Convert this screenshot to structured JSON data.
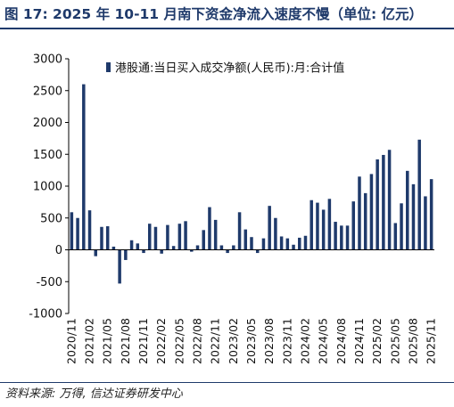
{
  "header": {
    "title": "图 17: 2025 年 10-11 月南下资金净流入速度不慢（单位: 亿元）"
  },
  "footer": {
    "source": "资料来源: 万得, 信达证券研发中心"
  },
  "colors": {
    "bar": "#1f3a6b",
    "title": "#1f3a6b"
  },
  "chart_data": {
    "type": "bar",
    "title": "",
    "xlabel": "",
    "ylabel": "",
    "ylim": [
      -1000,
      3000
    ],
    "yticks": [
      "3000",
      "2500",
      "2000",
      "1500",
      "1000",
      "500",
      "0",
      "-500",
      "-1000"
    ],
    "ytick_values": [
      3000,
      2500,
      2000,
      1500,
      1000,
      500,
      0,
      -500,
      -1000
    ],
    "grid": false,
    "legend": {
      "position": "top-left"
    },
    "categories": [
      "2020/11",
      "2020/12",
      "2021/01",
      "2021/02",
      "2021/03",
      "2021/04",
      "2021/05",
      "2021/06",
      "2021/07",
      "2021/08",
      "2021/09",
      "2021/10",
      "2021/11",
      "2021/12",
      "2022/01",
      "2022/02",
      "2022/03",
      "2022/04",
      "2022/05",
      "2022/06",
      "2022/07",
      "2022/08",
      "2022/09",
      "2022/10",
      "2022/11",
      "2022/12",
      "2023/01",
      "2023/02",
      "2023/03",
      "2023/04",
      "2023/05",
      "2023/06",
      "2023/07",
      "2023/08",
      "2023/09",
      "2023/10",
      "2023/11",
      "2023/12",
      "2024/01",
      "2024/02",
      "2024/03",
      "2024/04",
      "2024/05",
      "2024/06",
      "2024/07",
      "2024/08",
      "2024/09",
      "2024/10",
      "2024/11",
      "2024/12",
      "2025/01",
      "2025/02",
      "2025/03",
      "2025/04",
      "2025/05",
      "2025/06",
      "2025/07",
      "2025/08",
      "2025/09",
      "2025/10",
      "2025/11"
    ],
    "x_tick_labels": [
      "2020/11",
      "2021/02",
      "2021/05",
      "2021/08",
      "2021/11",
      "2022/02",
      "2022/05",
      "2022/08",
      "2022/11",
      "2023/02",
      "2023/05",
      "2023/08",
      "2023/11",
      "2024/02",
      "2024/05",
      "2024/08",
      "2024/11",
      "2025/02",
      "2025/05",
      "2025/08",
      "2025/11"
    ],
    "series": [
      {
        "name": "港股通:当日买入成交净额(人民币):月:合计值",
        "values": [
          590,
          500,
          2600,
          620,
          -100,
          360,
          370,
          50,
          -530,
          -160,
          150,
          100,
          -50,
          410,
          360,
          -60,
          390,
          60,
          410,
          450,
          -30,
          70,
          310,
          670,
          470,
          70,
          -50,
          70,
          590,
          320,
          200,
          -50,
          180,
          690,
          500,
          210,
          180,
          80,
          190,
          220,
          780,
          740,
          630,
          800,
          440,
          380,
          380,
          760,
          1150,
          890,
          1190,
          1420,
          1490,
          1570,
          420,
          730,
          1240,
          1030,
          1730,
          840,
          1110
        ]
      }
    ]
  }
}
